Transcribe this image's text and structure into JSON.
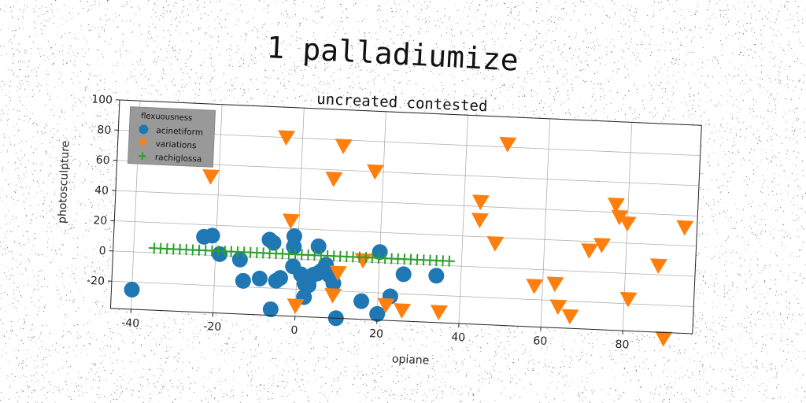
{
  "suptitle": "1 palladiumize",
  "chart_data": {
    "type": "scatter",
    "title": "uncreated contested",
    "xlabel": "opiane",
    "ylabel": "photosculpture",
    "xlim": [
      -45,
      97
    ],
    "ylim": [
      -38,
      100
    ],
    "xticks": [
      "-40",
      "-20",
      "0",
      "20",
      "40",
      "60",
      "80"
    ],
    "xtick_values": [
      -40,
      -20,
      0,
      20,
      40,
      60,
      80
    ],
    "yticks": [
      "-20",
      "0",
      "20",
      "40",
      "60",
      "80",
      "100"
    ],
    "ytick_values": [
      -20,
      0,
      20,
      40,
      60,
      80,
      100
    ],
    "grid": true,
    "legend": {
      "title": "flexuousness",
      "placement": "top-left",
      "background": "#999999"
    },
    "series": [
      {
        "name": "acinetiform",
        "marker": "circle",
        "color": "#1f77b4",
        "points": [
          [
            -40,
            -25
          ],
          [
            -23,
            12
          ],
          [
            -21,
            13
          ],
          [
            -19,
            1
          ],
          [
            -14,
            -2
          ],
          [
            -13,
            -16
          ],
          [
            -9,
            -14
          ],
          [
            -7,
            12
          ],
          [
            -6,
            10
          ],
          [
            -6,
            -34
          ],
          [
            -5,
            -15
          ],
          [
            -4,
            -13
          ],
          [
            -1,
            15
          ],
          [
            -1,
            -5
          ],
          [
            -1,
            8
          ],
          [
            1,
            -10
          ],
          [
            2,
            -25
          ],
          [
            2,
            -16
          ],
          [
            3,
            -17
          ],
          [
            4,
            -10
          ],
          [
            5,
            -9
          ],
          [
            5,
            9
          ],
          [
            6,
            -7
          ],
          [
            7,
            -3
          ],
          [
            8,
            -10
          ],
          [
            9,
            -15
          ],
          [
            10,
            -38
          ],
          [
            16,
            -26
          ],
          [
            20,
            7
          ],
          [
            20,
            -34
          ],
          [
            23,
            -22
          ],
          [
            26,
            -7
          ],
          [
            34,
            -7
          ]
        ]
      },
      {
        "name": "variations",
        "marker": "triangle-down",
        "color": "#ff7f0e",
        "points": [
          [
            -22,
            52
          ],
          [
            -4,
            80
          ],
          [
            -2,
            25
          ],
          [
            0,
            -31
          ],
          [
            8,
            54
          ],
          [
            9,
            -23
          ],
          [
            10,
            -8
          ],
          [
            10,
            76
          ],
          [
            16,
            1
          ],
          [
            18,
            60
          ],
          [
            22,
            -28
          ],
          [
            26,
            -31
          ],
          [
            35,
            -31
          ],
          [
            44,
            43
          ],
          [
            44,
            31
          ],
          [
            48,
            16
          ],
          [
            50,
            82
          ],
          [
            58,
            -11
          ],
          [
            63,
            -9
          ],
          [
            64,
            -24
          ],
          [
            67,
            -30
          ],
          [
            71,
            14
          ],
          [
            74,
            18
          ],
          [
            77,
            45
          ],
          [
            78,
            37
          ],
          [
            80,
            33
          ],
          [
            81,
            -17
          ],
          [
            88,
            6
          ],
          [
            90,
            -42
          ],
          [
            94,
            32
          ]
        ]
      },
      {
        "name": "rachiglossa",
        "marker": "plus",
        "color": "#2ca02c",
        "line": {
          "x_from": -35,
          "x_to": 37,
          "y": 3,
          "count": 47
        }
      }
    ]
  }
}
